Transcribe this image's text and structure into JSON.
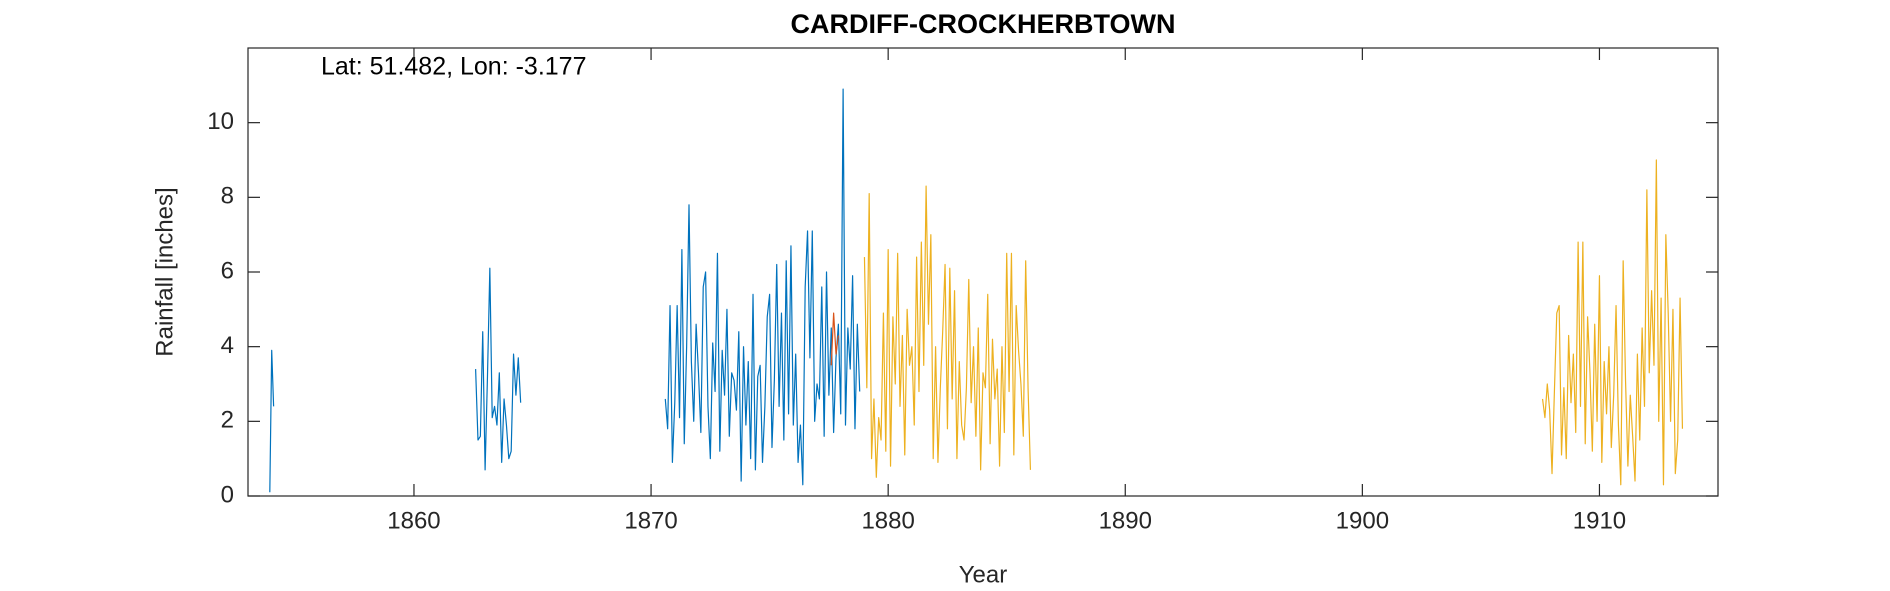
{
  "chart_data": {
    "type": "line",
    "title": "CARDIFF-CROCKHERBTOWN",
    "annotation": "Lat: 51.482, Lon: -3.177",
    "xlabel": "Year",
    "ylabel": "Rainfall [inches]",
    "xlim": [
      1853,
      1915
    ],
    "xticks": [
      1860,
      1870,
      1880,
      1890,
      1900,
      1910
    ],
    "ylim": [
      0,
      12
    ],
    "yticks": [
      0,
      2,
      4,
      6,
      8,
      10
    ],
    "grid": false,
    "series": [
      {
        "color": "#0072bd",
        "x": [
          1853.92,
          1854,
          1854.08,
          1858,
          1862.6,
          1862.7,
          1862.8,
          1862.9,
          1863,
          1863.1,
          1863.2,
          1863.3,
          1863.4,
          1863.5,
          1863.6,
          1863.7,
          1863.8,
          1863.9,
          1864,
          1864.1,
          1864.2,
          1864.3,
          1864.4,
          1864.5,
          1867,
          1870.6,
          1870.7,
          1870.8,
          1870.9,
          1871,
          1871.1,
          1871.2,
          1871.3,
          1871.4,
          1871.5,
          1871.6,
          1871.7,
          1871.8,
          1871.9,
          1872,
          1872.1,
          1872.2,
          1872.3,
          1872.4,
          1872.5,
          1872.6,
          1872.7,
          1872.8,
          1872.9,
          1873,
          1873.1,
          1873.2,
          1873.3,
          1873.4,
          1873.5,
          1873.6,
          1873.7,
          1873.8,
          1873.9,
          1874,
          1874.1,
          1874.2,
          1874.3,
          1874.4,
          1874.5,
          1874.6,
          1874.7,
          1874.8,
          1874.9,
          1875,
          1875.1,
          1875.2,
          1875.3,
          1875.4,
          1875.5,
          1875.6,
          1875.7,
          1875.8,
          1875.9,
          1876,
          1876.1,
          1876.2,
          1876.3,
          1876.4,
          1876.5,
          1876.6,
          1876.7,
          1876.8,
          1876.9,
          1877,
          1877.1,
          1877.2,
          1877.3,
          1877.4,
          1877.5,
          1877.6,
          1877.7,
          1877.8,
          1877.9,
          1878,
          1878.1,
          1878.2,
          1878.3,
          1878.4,
          1878.5,
          1878.6,
          1878.7,
          1878.8
        ],
        "values": [
          0.1,
          3.9,
          2.4,
          null,
          3.4,
          1.5,
          1.6,
          4.4,
          0.7,
          3.2,
          6.1,
          2.1,
          2.4,
          1.9,
          3.3,
          0.9,
          2.6,
          1.9,
          1.0,
          1.2,
          3.8,
          2.7,
          3.7,
          2.5,
          null,
          2.6,
          1.8,
          5.1,
          0.9,
          2.5,
          5.1,
          2.1,
          6.6,
          1.4,
          4.0,
          7.8,
          3.6,
          2.0,
          4.6,
          3.3,
          1.7,
          5.6,
          6.0,
          2.4,
          1.0,
          4.1,
          2.8,
          6.5,
          1.2,
          3.9,
          2.7,
          5.0,
          1.6,
          3.3,
          3.1,
          2.3,
          4.4,
          0.4,
          4.0,
          1.9,
          3.6,
          1.0,
          5.4,
          0.7,
          3.2,
          3.5,
          0.9,
          2.4,
          4.8,
          5.4,
          1.3,
          3.1,
          6.2,
          2.4,
          4.9,
          1.5,
          6.3,
          2.2,
          6.7,
          1.9,
          3.8,
          0.9,
          1.9,
          0.3,
          5.6,
          7.1,
          3.7,
          7.1,
          2.0,
          3.0,
          2.6,
          5.6,
          1.6,
          6.0,
          2.7,
          4.5,
          1.7,
          3.7,
          4.6,
          2.2,
          10.9,
          1.9,
          4.5,
          3.4,
          5.9,
          1.8,
          4.6,
          2.8
        ]
      },
      {
        "color": "#d95319",
        "x": [
          1877.6,
          1877.7,
          1877.8,
          1877.9
        ],
        "values": [
          3.5,
          4.9,
          3.8,
          4.3
        ]
      },
      {
        "color": "#edb120",
        "x": [
          1879,
          1879.1,
          1879.2,
          1879.3,
          1879.4,
          1879.5,
          1879.6,
          1879.7,
          1879.8,
          1879.9,
          1880,
          1880.1,
          1880.2,
          1880.3,
          1880.4,
          1880.5,
          1880.6,
          1880.7,
          1880.8,
          1880.9,
          1881,
          1881.1,
          1881.2,
          1881.3,
          1881.4,
          1881.5,
          1881.6,
          1881.7,
          1881.8,
          1881.9,
          1882,
          1882.1,
          1882.2,
          1882.3,
          1882.4,
          1882.5,
          1882.6,
          1882.7,
          1882.8,
          1882.9,
          1883,
          1883.1,
          1883.2,
          1883.3,
          1883.4,
          1883.5,
          1883.6,
          1883.7,
          1883.8,
          1883.9,
          1884,
          1884.1,
          1884.2,
          1884.3,
          1884.4,
          1884.5,
          1884.6,
          1884.7,
          1884.8,
          1884.9,
          1885,
          1885.1,
          1885.2,
          1885.3,
          1885.4,
          1885.5,
          1885.6,
          1885.7,
          1885.8,
          1885.9,
          1886,
          1895,
          1907.6,
          1907.7,
          1907.8,
          1907.9,
          1908,
          1908.1,
          1908.2,
          1908.3,
          1908.4,
          1908.5,
          1908.6,
          1908.7,
          1908.8,
          1908.9,
          1909,
          1909.1,
          1909.2,
          1909.3,
          1909.4,
          1909.5,
          1909.6,
          1909.7,
          1909.8,
          1909.9,
          1910,
          1910.1,
          1910.2,
          1910.3,
          1910.4,
          1910.5,
          1910.6,
          1910.7,
          1910.8,
          1910.9,
          1911,
          1911.1,
          1911.2,
          1911.3,
          1911.4,
          1911.5,
          1911.6,
          1911.7,
          1911.8,
          1911.9,
          1912,
          1912.1,
          1912.2,
          1912.3,
          1912.4,
          1912.5,
          1912.6,
          1912.7,
          1912.8,
          1912.9,
          1913,
          1913.1,
          1913.2,
          1913.3,
          1913.4,
          1913.5
        ],
        "values": [
          6.4,
          2.9,
          8.1,
          1.0,
          2.6,
          0.5,
          2.1,
          1.5,
          4.9,
          1.2,
          6.6,
          0.8,
          4.8,
          3.0,
          6.5,
          2.4,
          4.3,
          1.1,
          5.0,
          3.5,
          4.0,
          1.9,
          6.4,
          2.8,
          6.8,
          3.5,
          8.3,
          4.6,
          7.0,
          1.0,
          4.0,
          0.9,
          2.9,
          4.4,
          6.2,
          1.8,
          6.1,
          2.6,
          5.5,
          1.0,
          3.6,
          1.9,
          1.5,
          2.9,
          5.8,
          2.5,
          4.0,
          1.6,
          4.5,
          0.7,
          3.3,
          2.9,
          5.4,
          1.4,
          4.2,
          2.6,
          3.4,
          0.8,
          4.0,
          1.7,
          6.5,
          2.8,
          6.5,
          1.1,
          5.1,
          3.9,
          3.0,
          1.6,
          6.3,
          2.9,
          0.7,
          null,
          2.6,
          2.1,
          3.0,
          2.3,
          0.6,
          2.8,
          4.9,
          5.1,
          1.1,
          2.9,
          1.0,
          4.3,
          2.5,
          3.8,
          1.7,
          6.8,
          2.4,
          6.8,
          1.4,
          4.8,
          3.3,
          1.2,
          4.6,
          2.0,
          5.9,
          0.9,
          3.6,
          2.2,
          4.0,
          1.3,
          2.7,
          5.1,
          1.9,
          0.3,
          6.3,
          3.1,
          0.8,
          2.7,
          1.6,
          0.4,
          3.8,
          1.5,
          4.5,
          2.4,
          8.2,
          3.3,
          5.5,
          3.5,
          9.0,
          2.0,
          5.3,
          0.3,
          7.0,
          4.9,
          2.0,
          5.0,
          0.6,
          1.5,
          5.3,
          1.8
        ]
      }
    ]
  }
}
